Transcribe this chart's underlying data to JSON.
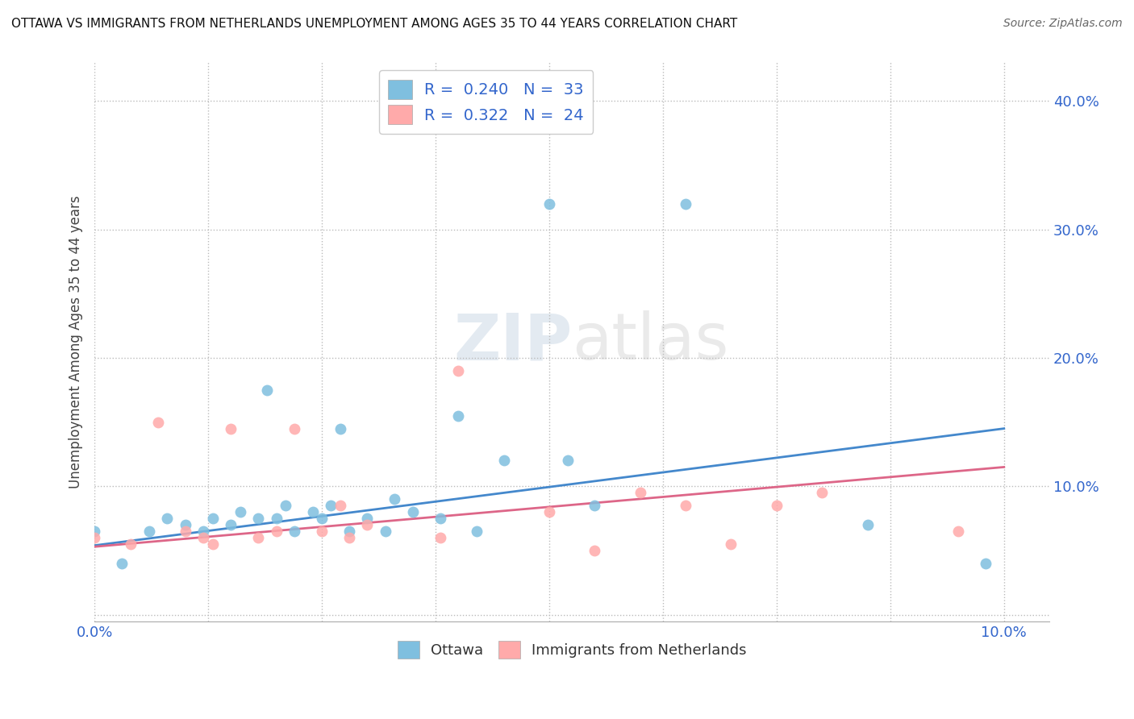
{
  "title": "OTTAWA VS IMMIGRANTS FROM NETHERLANDS UNEMPLOYMENT AMONG AGES 35 TO 44 YEARS CORRELATION CHART",
  "source": "Source: ZipAtlas.com",
  "ylabel_label": "Unemployment Among Ages 35 to 44 years",
  "xlim": [
    0.0,
    0.105
  ],
  "ylim": [
    -0.005,
    0.43
  ],
  "ytick_vals": [
    0.0,
    0.1,
    0.2,
    0.3,
    0.4
  ],
  "ytick_labels": [
    "",
    "10.0%",
    "20.0%",
    "30.0%",
    "40.0%"
  ],
  "xtick_vals": [
    0.0,
    0.0125,
    0.025,
    0.0375,
    0.05,
    0.0625,
    0.075,
    0.0875,
    0.1
  ],
  "xtick_labels": [
    "0.0%",
    "",
    "",
    "",
    "",
    "",
    "",
    "",
    "10.0%"
  ],
  "watermark_part1": "ZIP",
  "watermark_part2": "atlas",
  "ottawa_color": "#7fbfdf",
  "netherlands_color": "#ffaaaa",
  "trend_ottawa_color": "#4488cc",
  "trend_netherlands_color": "#dd6688",
  "ottawa_points_x": [
    0.0,
    0.003,
    0.006,
    0.008,
    0.01,
    0.012,
    0.013,
    0.015,
    0.016,
    0.018,
    0.019,
    0.02,
    0.021,
    0.022,
    0.024,
    0.025,
    0.026,
    0.027,
    0.028,
    0.03,
    0.032,
    0.033,
    0.035,
    0.038,
    0.04,
    0.042,
    0.045,
    0.05,
    0.052,
    0.055,
    0.065,
    0.085,
    0.098
  ],
  "ottawa_points_y": [
    0.065,
    0.04,
    0.065,
    0.075,
    0.07,
    0.065,
    0.075,
    0.07,
    0.08,
    0.075,
    0.175,
    0.075,
    0.085,
    0.065,
    0.08,
    0.075,
    0.085,
    0.145,
    0.065,
    0.075,
    0.065,
    0.09,
    0.08,
    0.075,
    0.155,
    0.065,
    0.12,
    0.32,
    0.12,
    0.085,
    0.32,
    0.07,
    0.04
  ],
  "netherlands_points_x": [
    0.0,
    0.004,
    0.007,
    0.01,
    0.012,
    0.013,
    0.015,
    0.018,
    0.02,
    0.022,
    0.025,
    0.027,
    0.028,
    0.03,
    0.038,
    0.04,
    0.05,
    0.055,
    0.06,
    0.065,
    0.07,
    0.075,
    0.08,
    0.095
  ],
  "netherlands_points_y": [
    0.06,
    0.055,
    0.15,
    0.065,
    0.06,
    0.055,
    0.145,
    0.06,
    0.065,
    0.145,
    0.065,
    0.085,
    0.06,
    0.07,
    0.06,
    0.19,
    0.08,
    0.05,
    0.095,
    0.085,
    0.055,
    0.085,
    0.095,
    0.065
  ],
  "ottawa_trend_x": [
    0.0,
    0.1
  ],
  "ottawa_trend_y": [
    0.054,
    0.145
  ],
  "netherlands_trend_x": [
    0.0,
    0.1
  ],
  "netherlands_trend_y": [
    0.053,
    0.115
  ]
}
